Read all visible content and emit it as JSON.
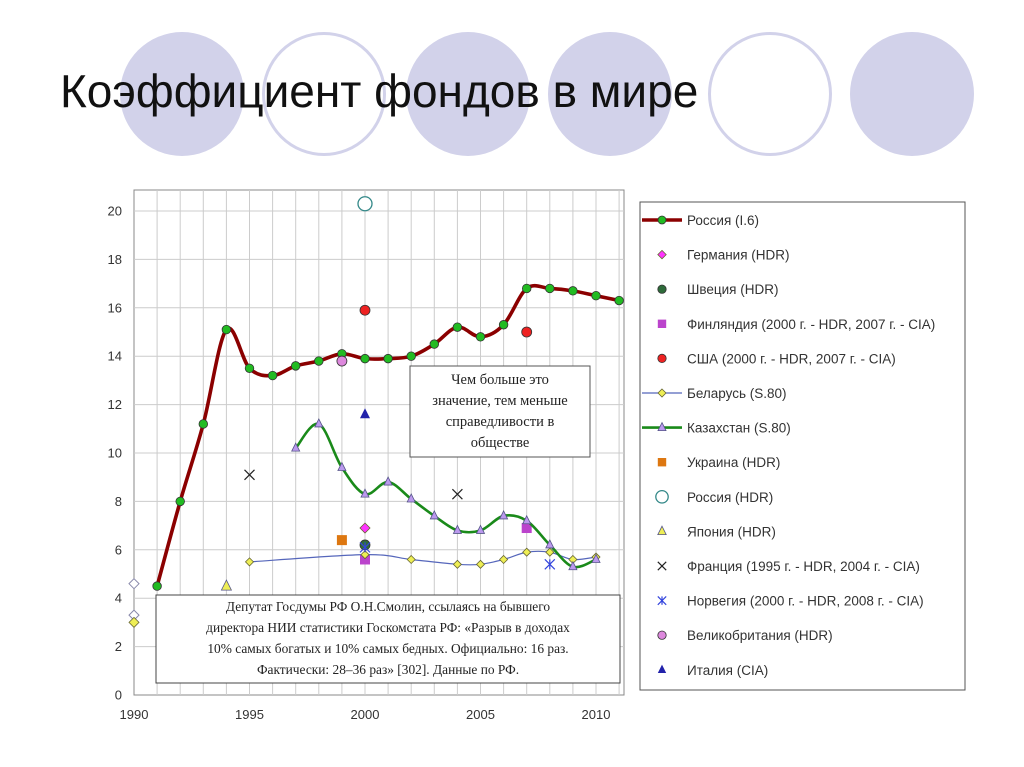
{
  "slide_title": "Коэффициент фондов в мире",
  "colors": {
    "accent_circles": "#d2d2ea",
    "russia_line": "#8b0000",
    "kazakhstan_line": "#1a8a1a",
    "grid": "#cccccc"
  },
  "chart_data": {
    "type": "line",
    "xlim": [
      1990,
      2011
    ],
    "ylim": [
      0,
      21
    ],
    "x_ticks": [
      1990,
      1995,
      2000,
      2005,
      2010
    ],
    "y_ticks": [
      0,
      2,
      4,
      6,
      8,
      10,
      12,
      14,
      16,
      18,
      20
    ],
    "grid": true,
    "legend_position": "right",
    "series": [
      {
        "name": "Россия (I.6)",
        "kind": "line",
        "color": "#8b0000",
        "marker": "circle",
        "marker_color": "#22bb22",
        "points": [
          [
            1991,
            4.5
          ],
          [
            1992,
            8.0
          ],
          [
            1993,
            11.2
          ],
          [
            1994,
            15.1
          ],
          [
            1995,
            13.5
          ],
          [
            1996,
            13.2
          ],
          [
            1997,
            13.6
          ],
          [
            1998,
            13.8
          ],
          [
            1999,
            14.1
          ],
          [
            2000,
            13.9
          ],
          [
            2001,
            13.9
          ],
          [
            2002,
            14.0
          ],
          [
            2003,
            14.5
          ],
          [
            2004,
            15.2
          ],
          [
            2005,
            14.8
          ],
          [
            2006,
            15.3
          ],
          [
            2007,
            16.8
          ],
          [
            2008,
            16.8
          ],
          [
            2009,
            16.7
          ],
          [
            2010,
            16.5
          ],
          [
            2011,
            16.3
          ]
        ]
      },
      {
        "name": "Германия (HDR)",
        "kind": "points",
        "color": "#ff33ff",
        "marker": "diamond",
        "points": [
          [
            2000,
            6.9
          ]
        ]
      },
      {
        "name": "Швеция (HDR)",
        "kind": "points",
        "color": "#2e6b3a",
        "marker": "circle",
        "points": [
          [
            2000,
            6.2
          ]
        ]
      },
      {
        "name": "Финляндия (2000 г. - HDR, 2007 г. - CIA)",
        "kind": "points",
        "color": "#bb44cc",
        "marker": "square",
        "points": [
          [
            2000,
            5.6
          ],
          [
            2007,
            6.9
          ]
        ]
      },
      {
        "name": "США (2000 г. - HDR, 2007 г. - CIA)",
        "kind": "points",
        "color": "#ee2222",
        "marker": "circle",
        "points": [
          [
            2000,
            15.9
          ],
          [
            2007,
            15.0
          ]
        ]
      },
      {
        "name": "Беларусь (S.80)",
        "kind": "line",
        "color": "#5566bb",
        "marker": "diamond",
        "marker_color": "#eeee55",
        "points": [
          [
            1995,
            5.5
          ],
          [
            2000,
            5.8
          ],
          [
            2002,
            5.6
          ],
          [
            2004,
            5.4
          ],
          [
            2005,
            5.4
          ],
          [
            2006,
            5.6
          ],
          [
            2007,
            5.9
          ],
          [
            2008,
            5.9
          ],
          [
            2009,
            5.6
          ],
          [
            2010,
            5.7
          ]
        ]
      },
      {
        "name": "Казахстан (S.80)",
        "kind": "line",
        "color": "#1a8a1a",
        "marker": "triangle",
        "marker_color": "#bb99ee",
        "points": [
          [
            1997,
            10.2
          ],
          [
            1998,
            11.2
          ],
          [
            1999,
            9.4
          ],
          [
            2000,
            8.3
          ],
          [
            2001,
            8.8
          ],
          [
            2002,
            8.1
          ],
          [
            2003,
            7.4
          ],
          [
            2004,
            6.8
          ],
          [
            2005,
            6.8
          ],
          [
            2006,
            7.4
          ],
          [
            2007,
            7.2
          ],
          [
            2008,
            6.2
          ],
          [
            2009,
            5.3
          ],
          [
            2010,
            5.6
          ]
        ]
      },
      {
        "name": "Украина (HDR)",
        "kind": "points",
        "color": "#dd7711",
        "marker": "square",
        "points": [
          [
            1999,
            6.4
          ]
        ]
      },
      {
        "name": "Россия (HDR)",
        "kind": "points",
        "color": "#338888",
        "marker": "open-circle",
        "points": [
          [
            2000,
            20.3
          ]
        ]
      },
      {
        "name": "Япония (HDR)",
        "kind": "points",
        "color": "#eeee55",
        "marker": "triangle",
        "points": [
          [
            1994,
            4.5
          ]
        ]
      },
      {
        "name": "Франция (1995 г. - HDR, 2004 г. - CIA)",
        "kind": "points",
        "color": "#222222",
        "marker": "x",
        "points": [
          [
            1995,
            9.1
          ],
          [
            2004,
            8.3
          ]
        ]
      },
      {
        "name": "Норвегия (2000 г. - HDR, 2008 г. - CIA)",
        "kind": "points",
        "color": "#3344dd",
        "marker": "star",
        "points": [
          [
            2000,
            6.1
          ],
          [
            2008,
            5.4
          ]
        ]
      },
      {
        "name": "Великобритания (HDR)",
        "kind": "points",
        "color": "#dd88dd",
        "marker": "circle",
        "points": [
          [
            1999,
            13.8
          ]
        ]
      },
      {
        "name": "Италия (CIA)",
        "kind": "points",
        "color": "#2222aa",
        "marker": "triangle-filled",
        "points": [
          [
            2000,
            11.6
          ]
        ]
      },
      {
        "name": "",
        "kind": "points-unlisted",
        "color": "#8888aa",
        "marker": "diamond-open",
        "points": [
          [
            1990,
            4.6
          ],
          [
            1990,
            3.3
          ]
        ]
      },
      {
        "name": "",
        "kind": "points-unlisted",
        "color": "#eeee55",
        "marker": "diamond",
        "points": [
          [
            1990,
            3.0
          ]
        ]
      }
    ],
    "annotations": [
      {
        "id": "inequality-note",
        "lines": [
          "Чем больше это",
          "значение, тем меньше",
          "справедливости в",
          "обществе"
        ]
      },
      {
        "id": "smolin-note",
        "lines": [
          "Депутат Госдумы РФ О.Н.Смолин, ссылаясь на бывшего",
          "директора НИИ статистики Госкомстата РФ: «Разрыв в доходах",
          "10% самых богатых и 10% самых бедных. Официально: 16 раз.",
          "Фактически: 28–36 раз» [302]. Данные по РФ."
        ]
      }
    ]
  }
}
